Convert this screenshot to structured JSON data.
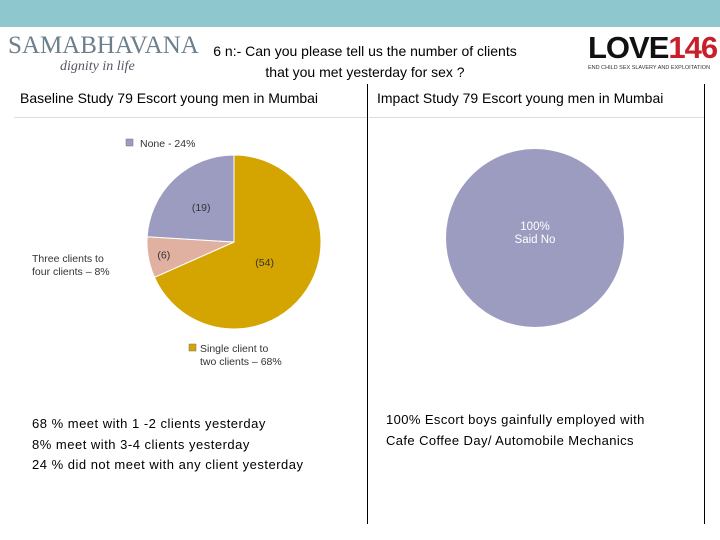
{
  "logos": {
    "left_brand": "SAMABHAVANA",
    "left_tagline": "dignity in life",
    "right_word": "LOVE",
    "right_number": "146",
    "right_sub": "END CHILD SEX SLAVERY AND EXPLOITATION"
  },
  "title": {
    "line1": "6 n:- Can you please tell us the number of clients",
    "line2": "that you met yesterday for sex ?"
  },
  "panels": {
    "left_header": "Baseline Study 79 Escort young men in Mumbai",
    "right_header": "Impact Study 79 Escort young men in Mumbai"
  },
  "colors": {
    "topbar": "#8fc7cf",
    "gold": "#d4a400",
    "lavender": "#9c9cc0",
    "salmon": "#e0b0a0"
  },
  "chart_data": [
    {
      "type": "pie",
      "title": "Baseline Study 79 Escort young men in Mumbai",
      "slices": [
        {
          "legend": "Single client to two clients – 68%",
          "value": 54,
          "percent": 68,
          "data_label": "(54)",
          "color": "#d4a400"
        },
        {
          "legend": "Three clients to four clients – 8%",
          "value": 6,
          "percent": 8,
          "data_label": "(6)",
          "color": "#e0b0a0"
        },
        {
          "legend": "None - 24%",
          "value": 19,
          "percent": 24,
          "data_label": "(19)",
          "color": "#9c9cc0"
        }
      ]
    },
    {
      "type": "pie",
      "title": "Impact Study 79 Escort young men in Mumbai",
      "slices": [
        {
          "legend": "",
          "value": 100,
          "percent": 100,
          "data_label_line1": "100%",
          "data_label_line2": "Said No",
          "color": "#9c9cc0"
        }
      ]
    }
  ],
  "summary": {
    "left": [
      "68 % meet with 1 -2 clients yesterday",
      "8% meet with 3-4 clients yesterday",
      "24 % did not meet with any client yesterday"
    ],
    "right": [
      "100% Escort boys gainfully employed with",
      "Cafe Coffee Day/ Automobile Mechanics"
    ]
  }
}
